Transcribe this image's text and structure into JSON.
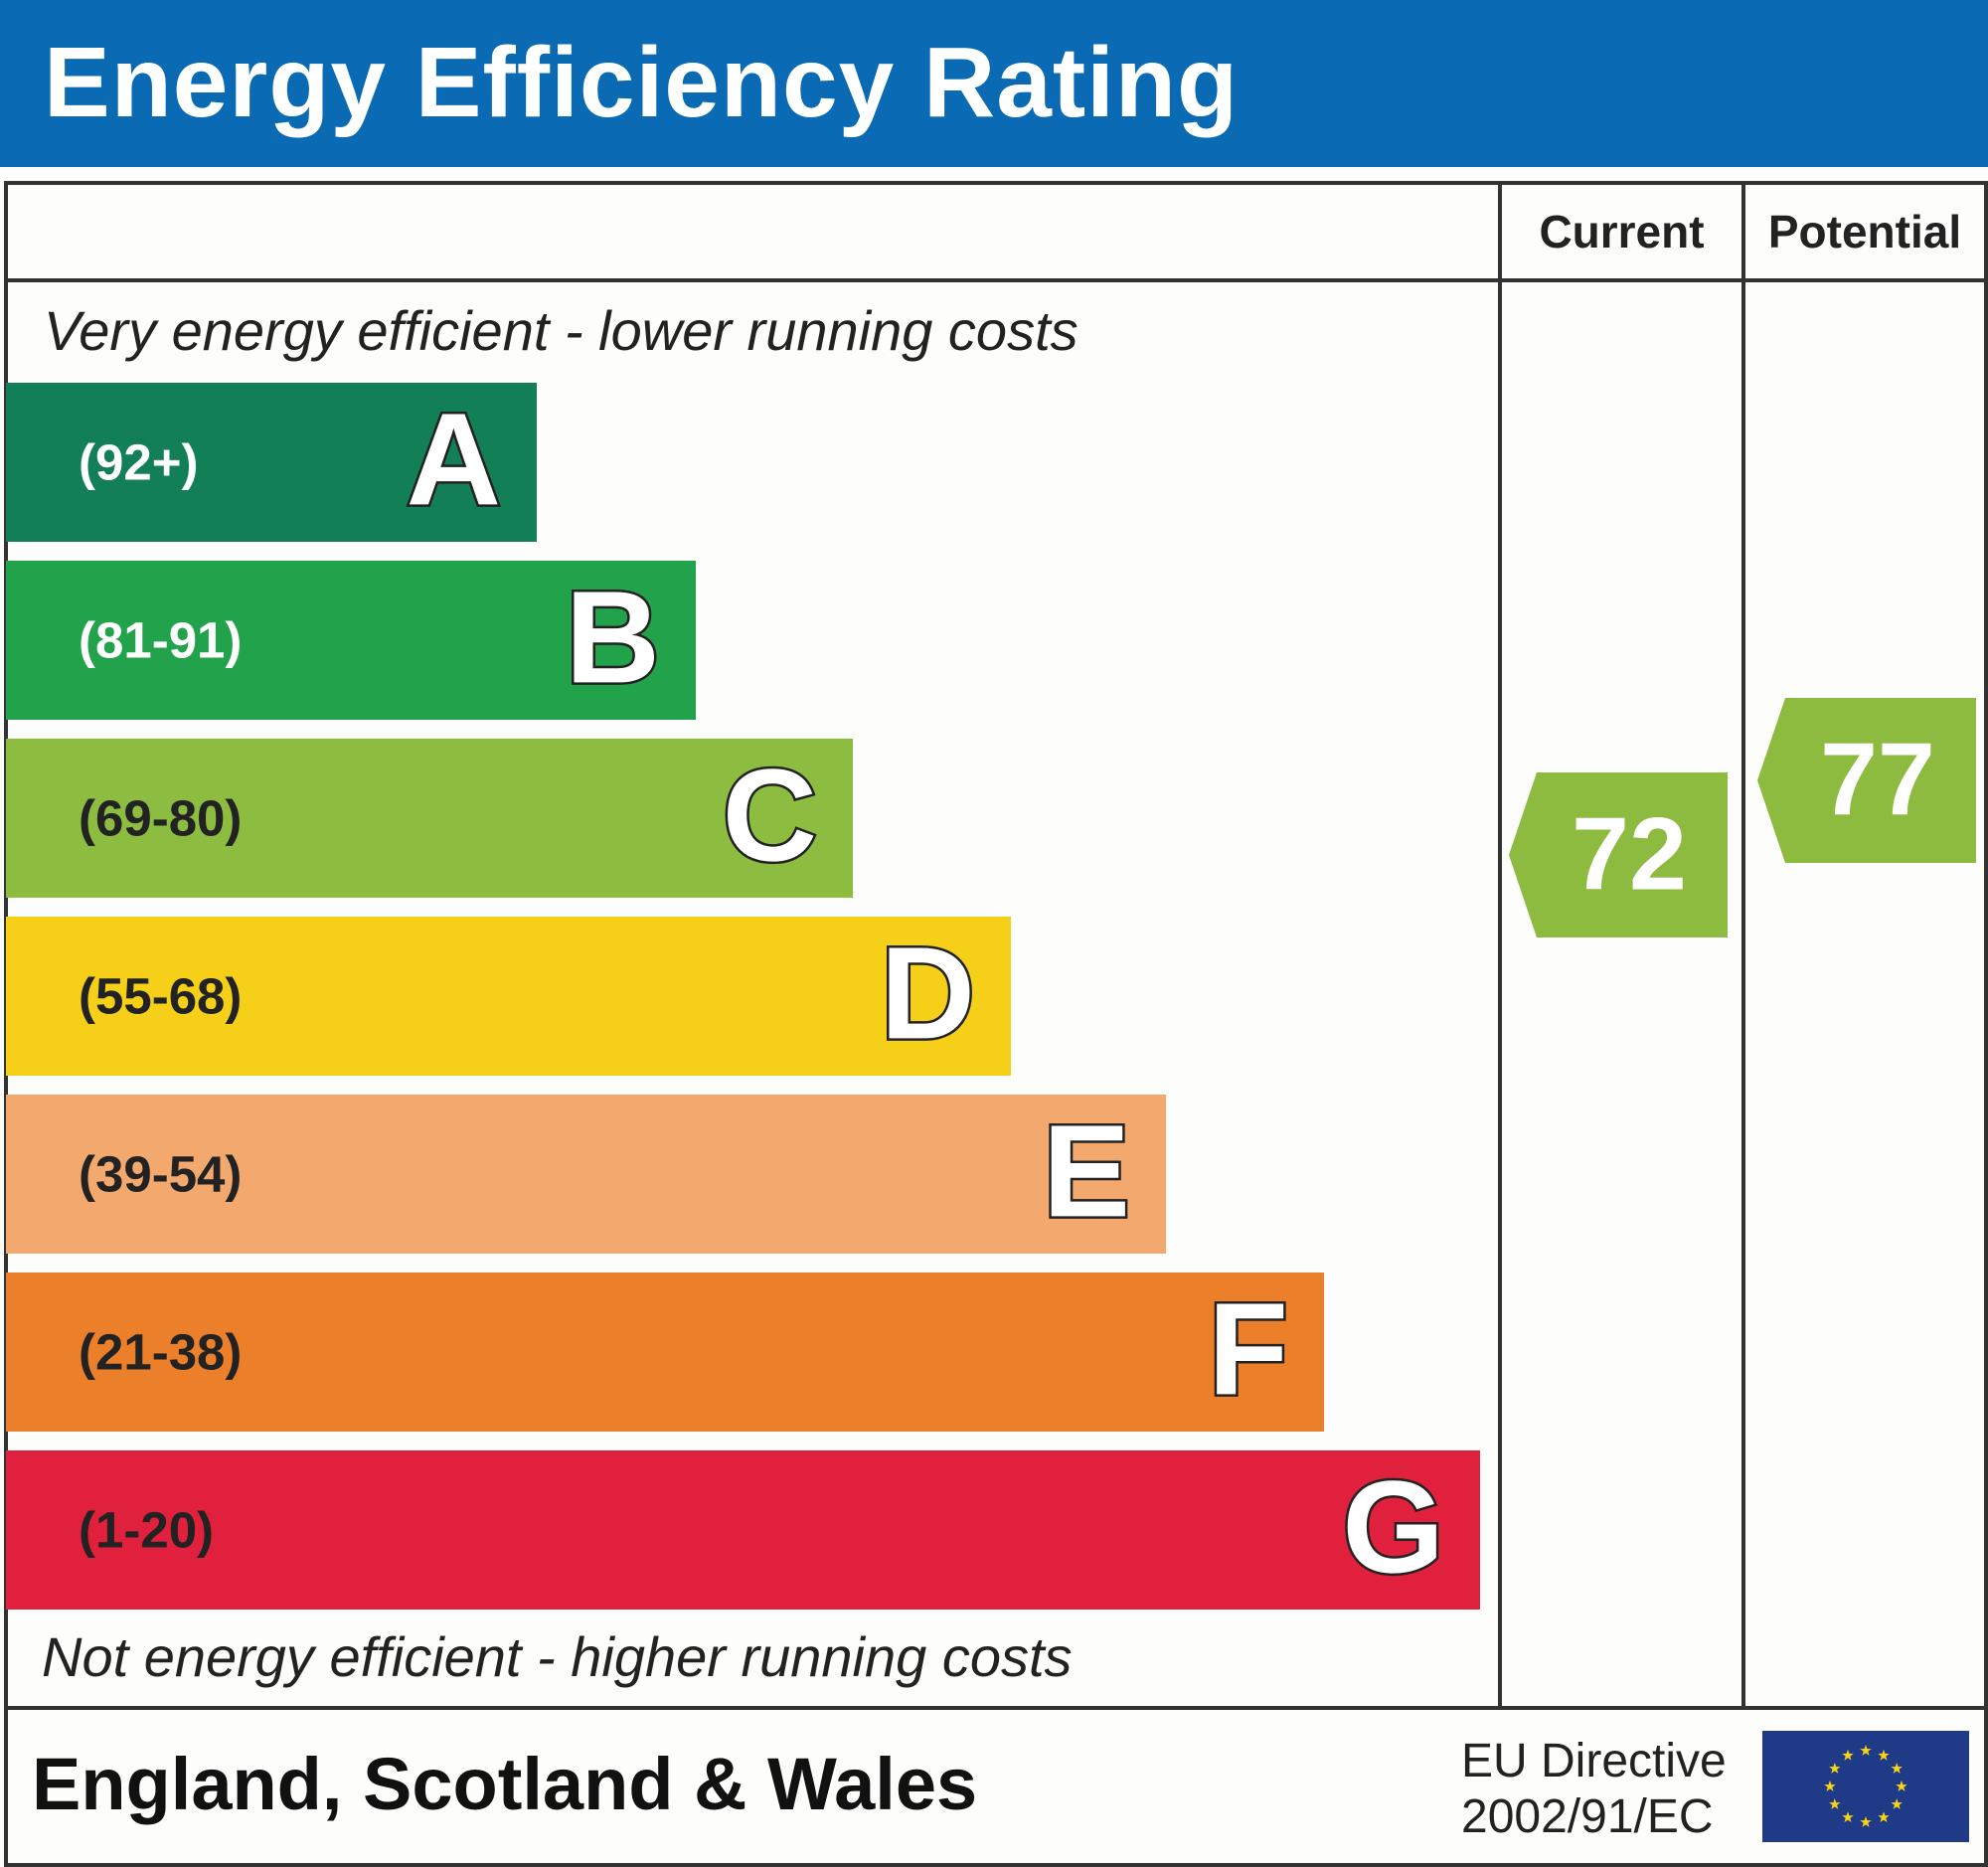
{
  "header": {
    "title": "Energy Efficiency Rating"
  },
  "columns": {
    "current": "Current",
    "potential": "Potential"
  },
  "notes": {
    "top": "Very energy efficient - lower running costs",
    "bottom": "Not energy efficient - higher running costs"
  },
  "footer": {
    "country": "England, Scotland & Wales",
    "directive_line1": "EU Directive",
    "directive_line2": "2002/91/EC",
    "flag_icon": "eu-flag-icon"
  },
  "colors": {
    "header": "#0a6ab4",
    "rating_arrow": "#8cbb3f"
  },
  "chart_data": {
    "type": "bar",
    "title": "Energy Efficiency Rating",
    "bands": [
      {
        "letter": "A",
        "range": "(92+)",
        "color": "#127f57",
        "text_color": "#ffffff"
      },
      {
        "letter": "B",
        "range": "(81-91)",
        "color": "#22a24a",
        "text_color": "#ffffff"
      },
      {
        "letter": "C",
        "range": "(69-80)",
        "color": "#8cbd40",
        "text_color": "#222222"
      },
      {
        "letter": "D",
        "range": "(55-68)",
        "color": "#f5cf18",
        "text_color": "#222222"
      },
      {
        "letter": "E",
        "range": "(39-54)",
        "color": "#f3a96e",
        "text_color": "#222222"
      },
      {
        "letter": "F",
        "range": "(21-38)",
        "color": "#ec7f29",
        "text_color": "#222222"
      },
      {
        "letter": "G",
        "range": "(1-20)",
        "color": "#e1203d",
        "text_color": "#222222"
      }
    ],
    "current": {
      "value": "72",
      "band": "C"
    },
    "potential": {
      "value": "77",
      "band": "C"
    }
  }
}
